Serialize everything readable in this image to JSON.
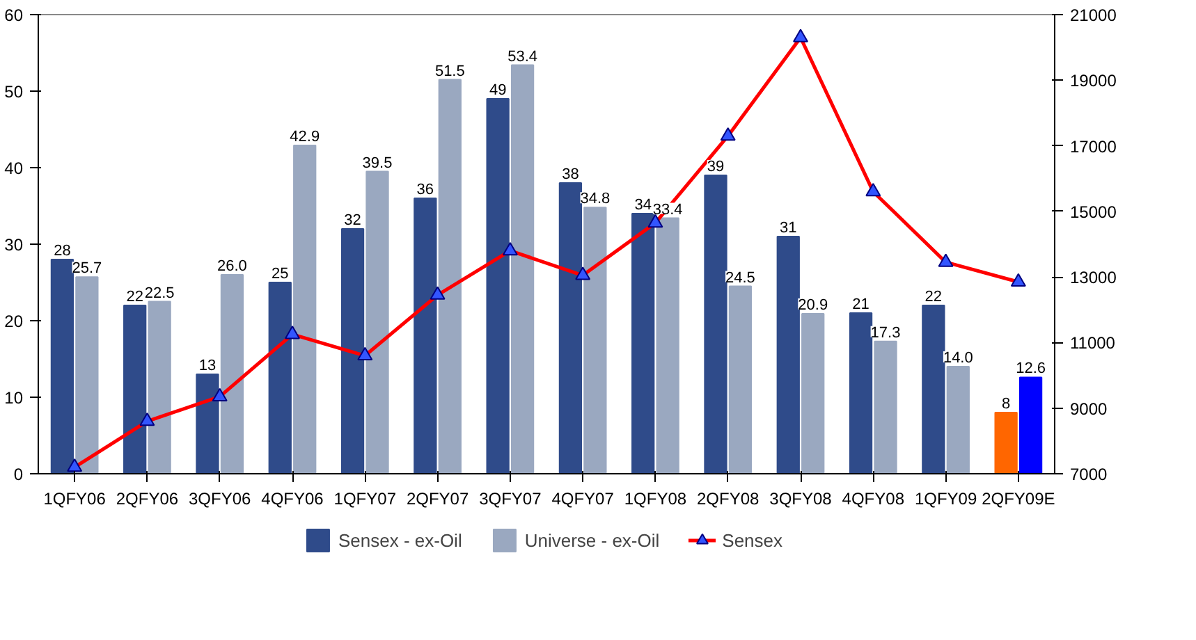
{
  "chart_data": {
    "type": "bar",
    "categories": [
      "1QFY06",
      "2QFY06",
      "3QFY06",
      "4QFY06",
      "1QFY07",
      "2QFY07",
      "3QFY07",
      "4QFY07",
      "1QFY08",
      "2QFY08",
      "3QFY08",
      "4QFY08",
      "1QFY09",
      "2QFY09E"
    ],
    "series": [
      {
        "name": "Sensex - ex-Oil",
        "color": "#2f4b8a",
        "colors": [
          "#2f4b8a",
          "#2f4b8a",
          "#2f4b8a",
          "#2f4b8a",
          "#2f4b8a",
          "#2f4b8a",
          "#2f4b8a",
          "#2f4b8a",
          "#2f4b8a",
          "#2f4b8a",
          "#2f4b8a",
          "#2f4b8a",
          "#2f4b8a",
          "#ff6600"
        ],
        "values": [
          28,
          22,
          13,
          25,
          32,
          36,
          49,
          38,
          34,
          39,
          31,
          21,
          22,
          8
        ],
        "value_labels": [
          "28",
          "22",
          "13",
          "25",
          "32",
          "36",
          "49",
          "38",
          "34",
          "39",
          "31",
          "21",
          "22",
          "8"
        ]
      },
      {
        "name": "Universe - ex-Oil",
        "color": "#9aa8c0",
        "colors": [
          "#9aa8c0",
          "#9aa8c0",
          "#9aa8c0",
          "#9aa8c0",
          "#9aa8c0",
          "#9aa8c0",
          "#9aa8c0",
          "#9aa8c0",
          "#9aa8c0",
          "#9aa8c0",
          "#9aa8c0",
          "#9aa8c0",
          "#9aa8c0",
          "#0000ff"
        ],
        "values": [
          25.7,
          22.5,
          26.0,
          42.9,
          39.5,
          51.5,
          53.4,
          34.8,
          33.4,
          24.5,
          20.9,
          17.3,
          14.0,
          12.6
        ],
        "value_labels": [
          "25.7",
          "22.5",
          "26.0",
          "42.9",
          "39.5",
          "51.5",
          "53.4",
          "34.8",
          "33.4",
          "24.5",
          "20.9",
          "17.3",
          "14.0",
          "12.6"
        ]
      },
      {
        "name": "Sensex",
        "type": "line",
        "axis": "y2",
        "color": "#ff0000",
        "marker": "triangle",
        "values": [
          7200,
          8600,
          9350,
          11250,
          10600,
          12450,
          13800,
          13050,
          14650,
          17300,
          20300,
          15600,
          13450,
          12850
        ]
      }
    ],
    "ylim": [
      0,
      60
    ],
    "yticks": [
      0,
      10,
      20,
      30,
      40,
      50,
      60
    ],
    "y2lim": [
      7000,
      21000
    ],
    "y2ticks": [
      7000,
      9000,
      11000,
      13000,
      15000,
      17000,
      19000,
      21000
    ],
    "grid": false,
    "legend": "bottom"
  }
}
